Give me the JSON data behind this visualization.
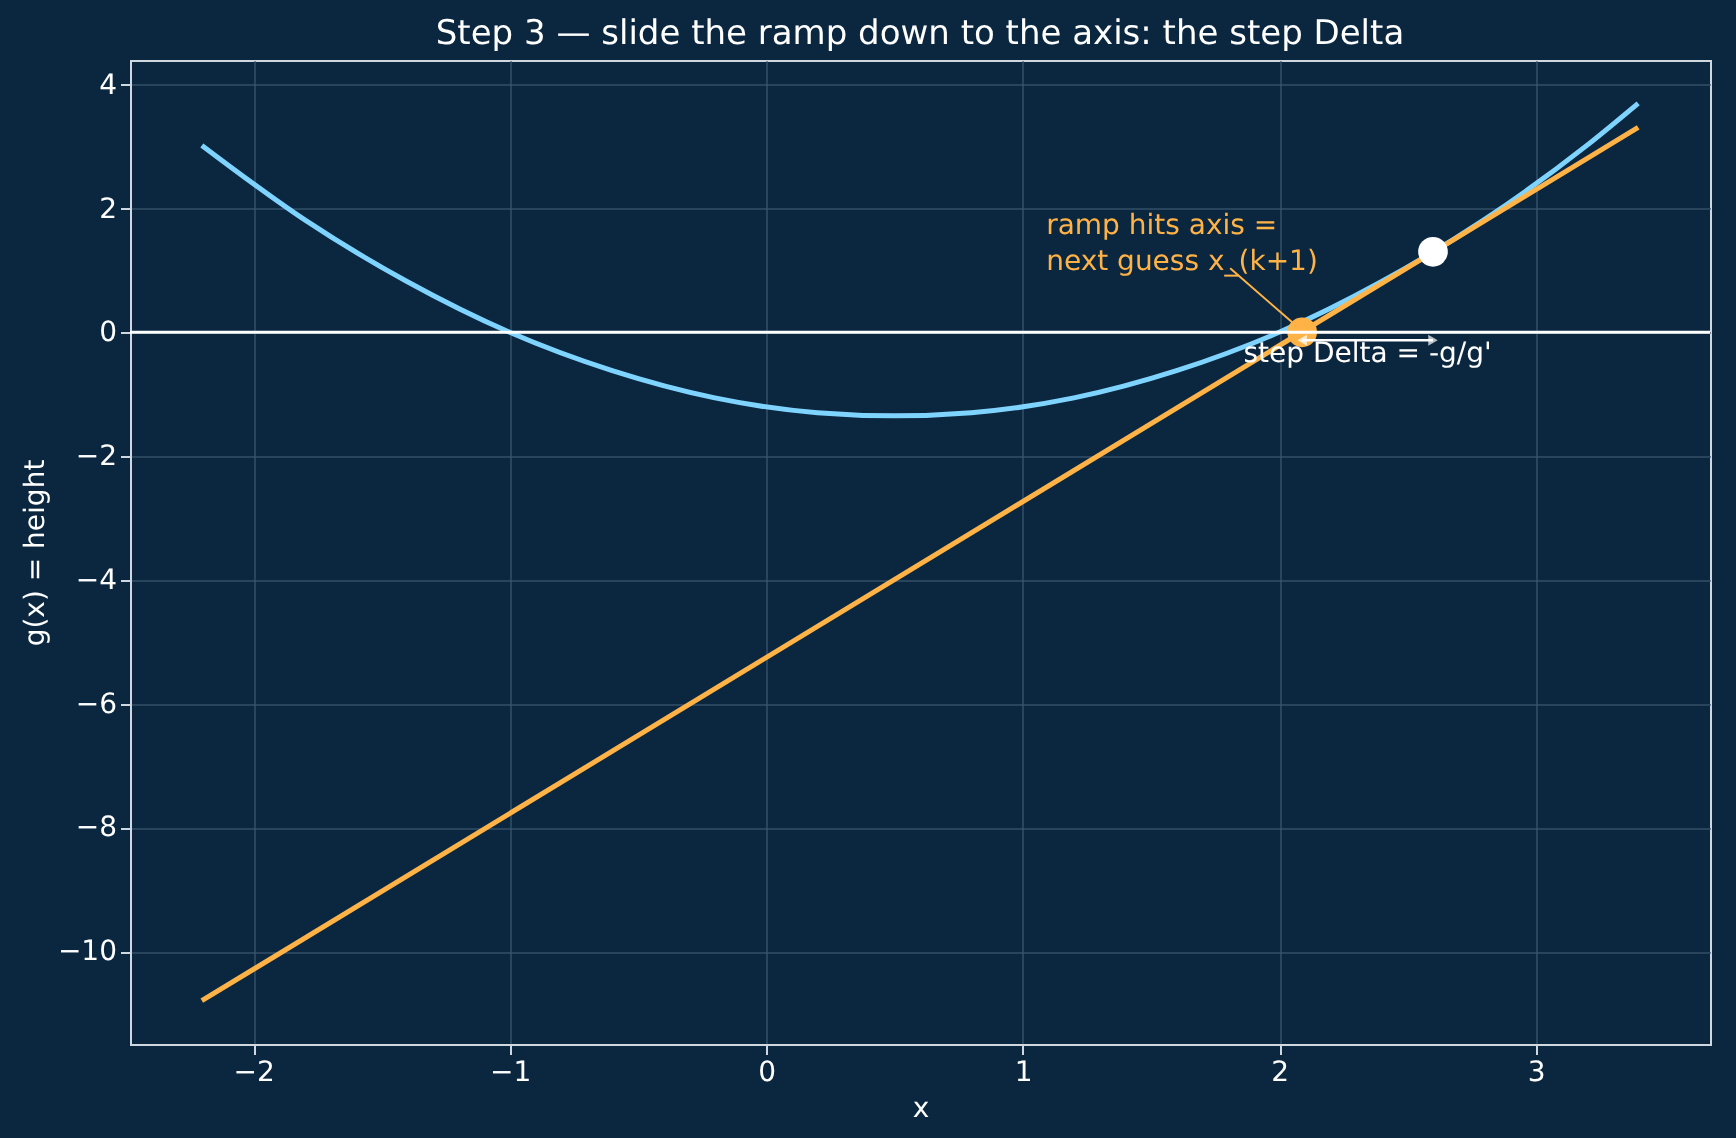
{
  "chart_data": {
    "type": "line",
    "title": "Step 3 — slide the ramp down to the axis: the step Delta",
    "xlabel": "x",
    "ylabel": "g(x) = height",
    "xlim": [
      -2.48,
      3.68
    ],
    "xticks": [
      -2,
      -1,
      0,
      1,
      2,
      3
    ],
    "ylim": [
      -11.5,
      4.4
    ],
    "yticks": [
      -10,
      -8,
      -6,
      -4,
      -2,
      0,
      2,
      4
    ],
    "grid": true,
    "series": [
      {
        "color": "#7fd4ff",
        "x": [
          -2.2,
          -1.8,
          -1.4,
          -1.0,
          -0.6,
          -0.2,
          0.2,
          0.5,
          0.8,
          1.2,
          1.6,
          2.0,
          2.4,
          2.8,
          3.2,
          3.4
        ],
        "values": [
          3.02,
          1.82,
          0.82,
          0,
          -0.62,
          -1.06,
          -1.3,
          -1.35,
          -1.3,
          -1.06,
          -0.62,
          0,
          0.82,
          1.82,
          3.02,
          3.7
        ]
      },
      {
        "color": "#ffb347",
        "x": [
          -2.2,
          3.4
        ],
        "values": [
          -10.8,
          3.31
        ]
      },
      {
        "type": "scatter",
        "color": "#ffffff",
        "x": [
          2.6
        ],
        "values": [
          1.3
        ]
      },
      {
        "type": "scatter",
        "color": "#ffb347",
        "x": [
          2.09
        ],
        "values": [
          0
        ]
      }
    ],
    "ref_lines": [
      {
        "axis": "y",
        "value": 0,
        "color": "#ffffff"
      }
    ],
    "annotations": [
      {
        "text": "ramp hits axis =\nnext guess x_(k+1)",
        "x": 2.09,
        "y": 0
      },
      "step  Delta = -g/g'"
    ]
  }
}
